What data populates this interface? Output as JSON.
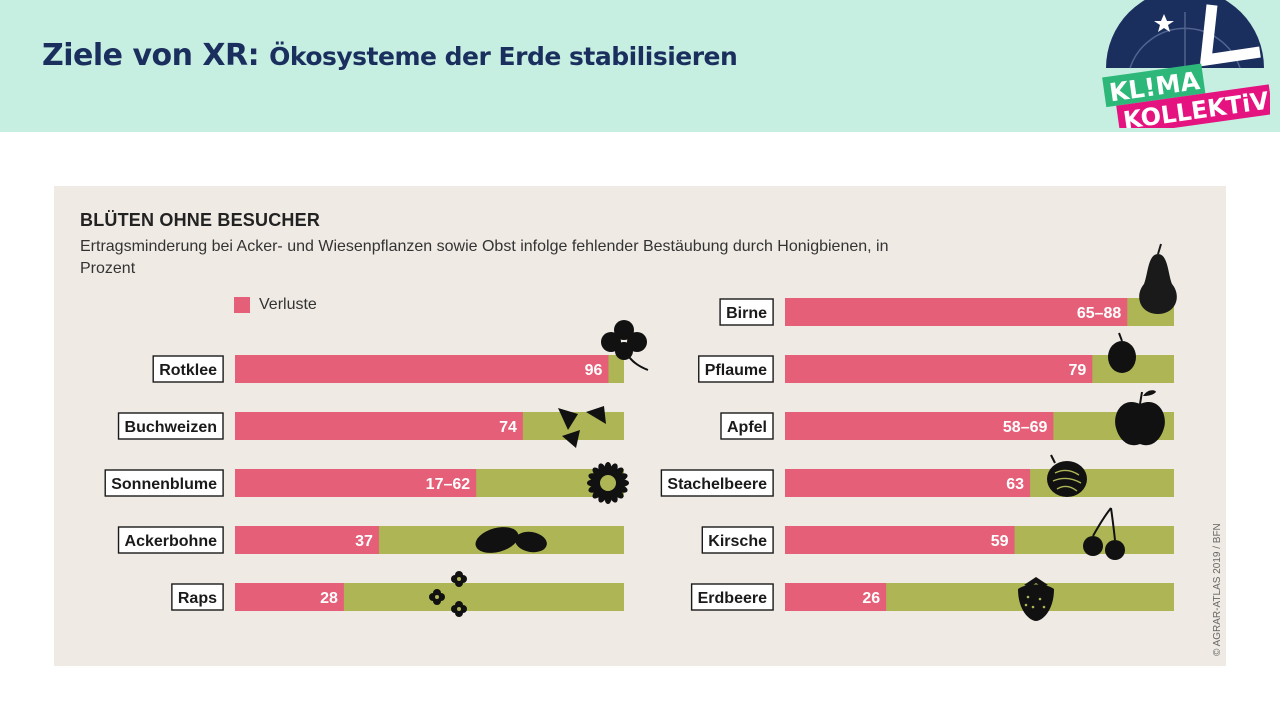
{
  "slide": {
    "title_main": "Ziele von XR:",
    "title_rest": "Ökosysteme der Erde stabilisieren"
  },
  "logo": {
    "line1": "KL!MA",
    "line2": "KOLLEKTiV",
    "colors": {
      "navy": "#1b2f5e",
      "green": "#2db87a",
      "magenta": "#e5137f"
    }
  },
  "chart_data": {
    "type": "bar",
    "title": "BLÜTEN OHNE BESUCHER",
    "subtitle": "Ertragsminderung bei Acker- und Wiesenpflanzen sowie Obst infolge fehlender Bestäubung durch Honigbienen, in Prozent",
    "legend": [
      {
        "name": "Verluste",
        "color": "#e65f78"
      }
    ],
    "credit": "© AGRAR-ATLAS 2019 / BFN",
    "xlim": [
      0,
      100
    ],
    "colors": {
      "loss": "#e65f78",
      "rest": "#adb555",
      "panel": "#efeae4"
    },
    "groups": [
      {
        "items": [
          {
            "category": "Rotklee",
            "value": 96,
            "label": "96",
            "icon": "clover-icon"
          },
          {
            "category": "Buchweizen",
            "value": 74,
            "label": "74",
            "icon": "buckwheat-icon"
          },
          {
            "category": "Sonnenblume",
            "value": 62,
            "range": [
              17,
              62
            ],
            "label": "17–62",
            "icon": "sunflower-icon"
          },
          {
            "category": "Ackerbohne",
            "value": 37,
            "label": "37",
            "icon": "bean-icon"
          },
          {
            "category": "Raps",
            "value": 28,
            "label": "28",
            "icon": "rapeseed-flower-icon"
          }
        ]
      },
      {
        "items": [
          {
            "category": "Birne",
            "value": 88,
            "range": [
              65,
              88
            ],
            "label": "65–88",
            "icon": "pear-icon"
          },
          {
            "category": "Pflaume",
            "value": 79,
            "label": "79",
            "icon": "plum-icon"
          },
          {
            "category": "Apfel",
            "value": 69,
            "range": [
              58,
              69
            ],
            "label": "58–69",
            "icon": "apple-icon"
          },
          {
            "category": "Stachelbeere",
            "value": 63,
            "label": "63",
            "icon": "gooseberry-icon"
          },
          {
            "category": "Kirsche",
            "value": 59,
            "label": "59",
            "icon": "cherry-icon"
          },
          {
            "category": "Erdbeere",
            "value": 26,
            "label": "26",
            "icon": "strawberry-icon"
          }
        ]
      }
    ]
  }
}
